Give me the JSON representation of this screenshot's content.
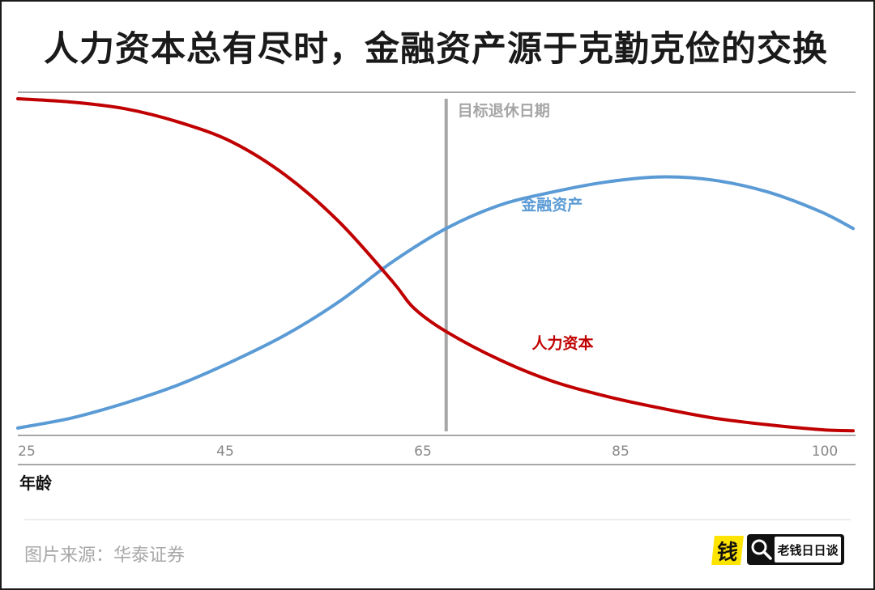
{
  "title": "人力资本总有尽时，金融资产源于克勤克俭的交换",
  "source": "图片来源：华泰证券",
  "logo": {
    "mark": "钱",
    "text": "老钱日日谈"
  },
  "chart_data": {
    "type": "line",
    "xlabel": "年龄",
    "xlim": [
      25,
      103
    ],
    "ylim": [
      0,
      100
    ],
    "x_ticks": [
      25,
      45,
      65,
      85,
      100
    ],
    "grid": false,
    "annotations": [
      {
        "text": "目标退休日期",
        "x": 65,
        "kind": "vertical-line"
      }
    ],
    "series": [
      {
        "name": "人力资本",
        "color": "#c00000",
        "x": [
          25,
          30,
          35,
          40,
          45,
          50,
          55,
          60,
          62,
          65,
          70,
          75,
          80,
          85,
          90,
          95,
          100,
          103
        ],
        "values": [
          100,
          99,
          97,
          93,
          87,
          77,
          63,
          45,
          37,
          30,
          21.5,
          15,
          10.5,
          7,
          4,
          2,
          0.5,
          0.2
        ]
      },
      {
        "name": "金融资产",
        "color": "#5b9bd5",
        "x": [
          25,
          30,
          35,
          40,
          45,
          50,
          55,
          60,
          65,
          70,
          75,
          80,
          85,
          90,
          95,
          100,
          103
        ],
        "values": [
          1,
          4,
          8.5,
          14,
          21,
          29,
          39,
          51,
          61,
          68,
          72,
          75,
          76.5,
          75.5,
          72,
          66,
          61
        ]
      }
    ],
    "label_positions": {
      "人力资本": {
        "x": 73,
        "y": 25
      },
      "金融资产": {
        "x": 72,
        "y": 66.5
      }
    },
    "colors": {
      "axis": "#8a8a8a",
      "retire_line": "#a6a6a6",
      "retire_label": "#a6a6a6",
      "tick": "#888888"
    }
  }
}
